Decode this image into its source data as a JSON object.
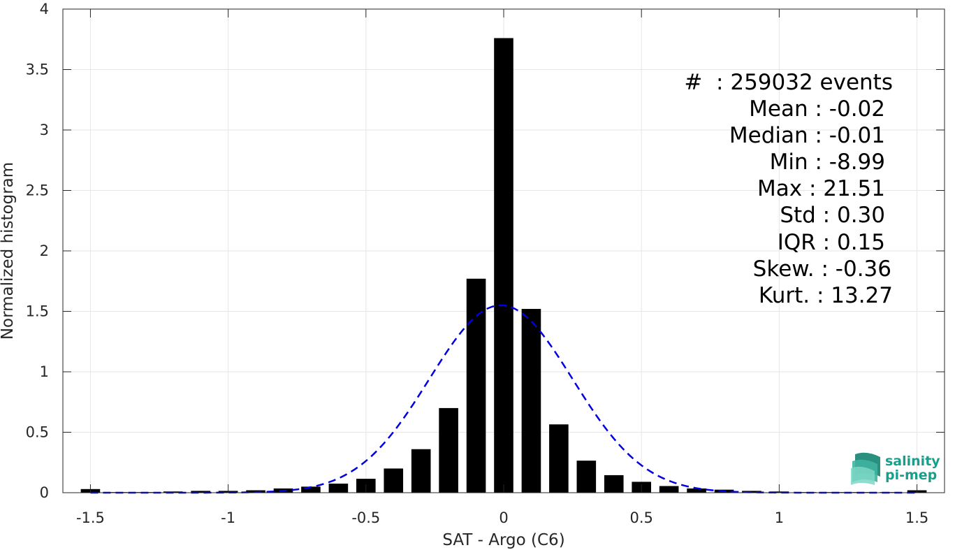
{
  "chart_data": {
    "type": "bar",
    "xlabel": "SAT - Argo (C6)",
    "ylabel": "Normalized histogram",
    "xlim": [
      -1.6,
      1.6
    ],
    "ylim": [
      0,
      4
    ],
    "grid": true,
    "x_ticks": [
      -1.5,
      -1,
      -0.5,
      0,
      0.5,
      1,
      1.5
    ],
    "x_tick_labels": [
      "-1.5",
      "-1",
      "-0.5",
      "0",
      "0.5",
      "1",
      "1.5"
    ],
    "y_ticks": [
      0,
      0.5,
      1,
      1.5,
      2,
      2.5,
      3,
      3.5,
      4
    ],
    "y_tick_labels": [
      "0",
      "0.5",
      "1",
      "1.5",
      "2",
      "2.5",
      "3",
      "3.5",
      "4"
    ],
    "bin_width": 0.1,
    "bar_width": 0.07,
    "bar_color": "#000000",
    "x": [
      -1.5,
      -1.4,
      -1.3,
      -1.2,
      -1.1,
      -1.0,
      -0.9,
      -0.8,
      -0.7,
      -0.6,
      -0.5,
      -0.4,
      -0.3,
      -0.2,
      -0.1,
      0.0,
      0.1,
      0.2,
      0.3,
      0.4,
      0.5,
      0.6,
      0.7,
      0.8,
      0.9,
      1.0,
      1.1,
      1.2,
      1.3,
      1.4,
      1.5
    ],
    "values": [
      0.03,
      0.005,
      0.005,
      0.01,
      0.015,
      0.015,
      0.02,
      0.035,
      0.05,
      0.075,
      0.115,
      0.2,
      0.36,
      0.7,
      1.77,
      3.76,
      1.52,
      0.565,
      0.265,
      0.145,
      0.09,
      0.055,
      0.035,
      0.025,
      0.015,
      0.01,
      0.005,
      0.005,
      0.005,
      0.005,
      0.02
    ],
    "fit_curve": {
      "style": "dashed",
      "color": "#0000e0",
      "mean": -0.01,
      "sigma": 0.26,
      "peak": 1.55,
      "x_range": [
        -1.5,
        1.5
      ]
    },
    "stats_color": "#000000"
  },
  "stats": {
    "events": "#  : 259032 events",
    "mean": "Mean : -0.02",
    "median": "Median : -0.01",
    "min": "Min : -8.99",
    "max": "Max : 21.51",
    "std": "Std : 0.30",
    "iqr": "IQR : 0.15",
    "skew": "Skew. : -0.36",
    "kurt": "Kurt. : 13.27"
  },
  "logo": {
    "line1": "salinity",
    "line2": "pi-mep",
    "icon": "salinity-wave-logo-icon",
    "color": "#1a9e8c"
  }
}
